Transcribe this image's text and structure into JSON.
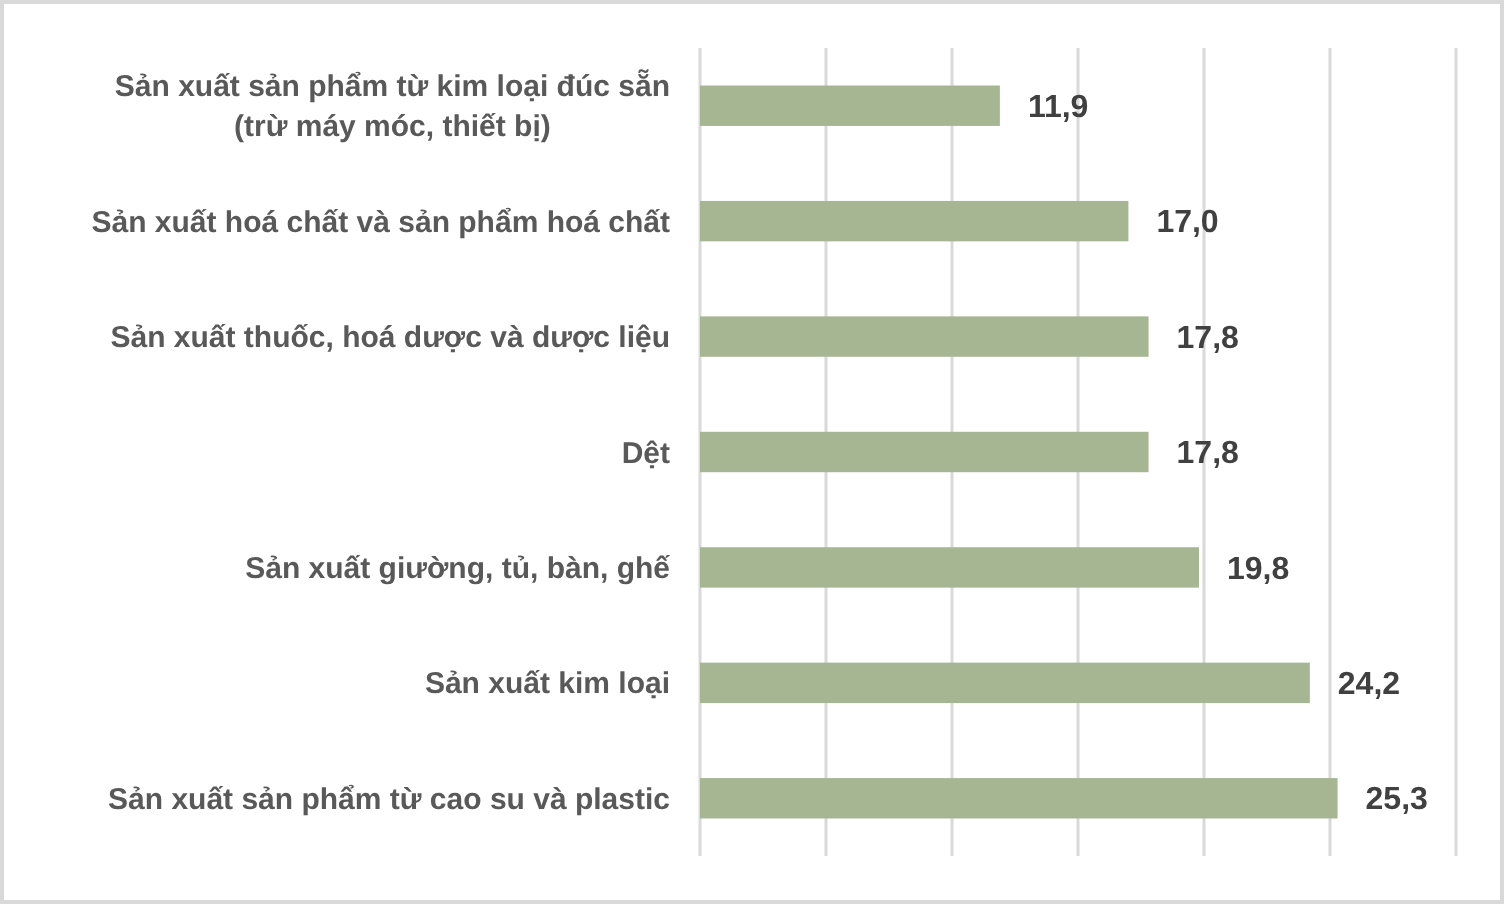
{
  "chart_data": {
    "type": "bar",
    "orientation": "horizontal",
    "categories": [
      "Sản xuất sản phẩm từ kim loại đúc sẵn (trừ máy móc, thiết bị)",
      "Sản xuất hoá chất và sản phẩm hoá chất",
      "Sản xuất thuốc, hoá dược và dược liệu",
      "Dệt",
      "Sản xuất giường, tủ, bàn, ghế",
      "Sản xuất kim loại",
      "Sản xuất sản phẩm từ cao su và plastic"
    ],
    "values": [
      11.9,
      17.0,
      17.8,
      17.8,
      19.8,
      24.2,
      25.3
    ],
    "color": "#a6b592",
    "value_labels": [
      "11,9",
      "17,0",
      "17,8",
      "17,8",
      "19,8",
      "24,2",
      "25,3"
    ],
    "xlim": [
      0,
      30
    ],
    "xticks": [
      {
        "value": 0,
        "label": null
      },
      {
        "value": 5,
        "label": null
      },
      {
        "value": 10,
        "label": null
      },
      {
        "value": 15,
        "label": null
      },
      {
        "value": 20,
        "label": null
      },
      {
        "value": 25,
        "label": null
      },
      {
        "value": 30,
        "label": null
      }
    ],
    "grid": "x",
    "tick_labels": "y"
  }
}
